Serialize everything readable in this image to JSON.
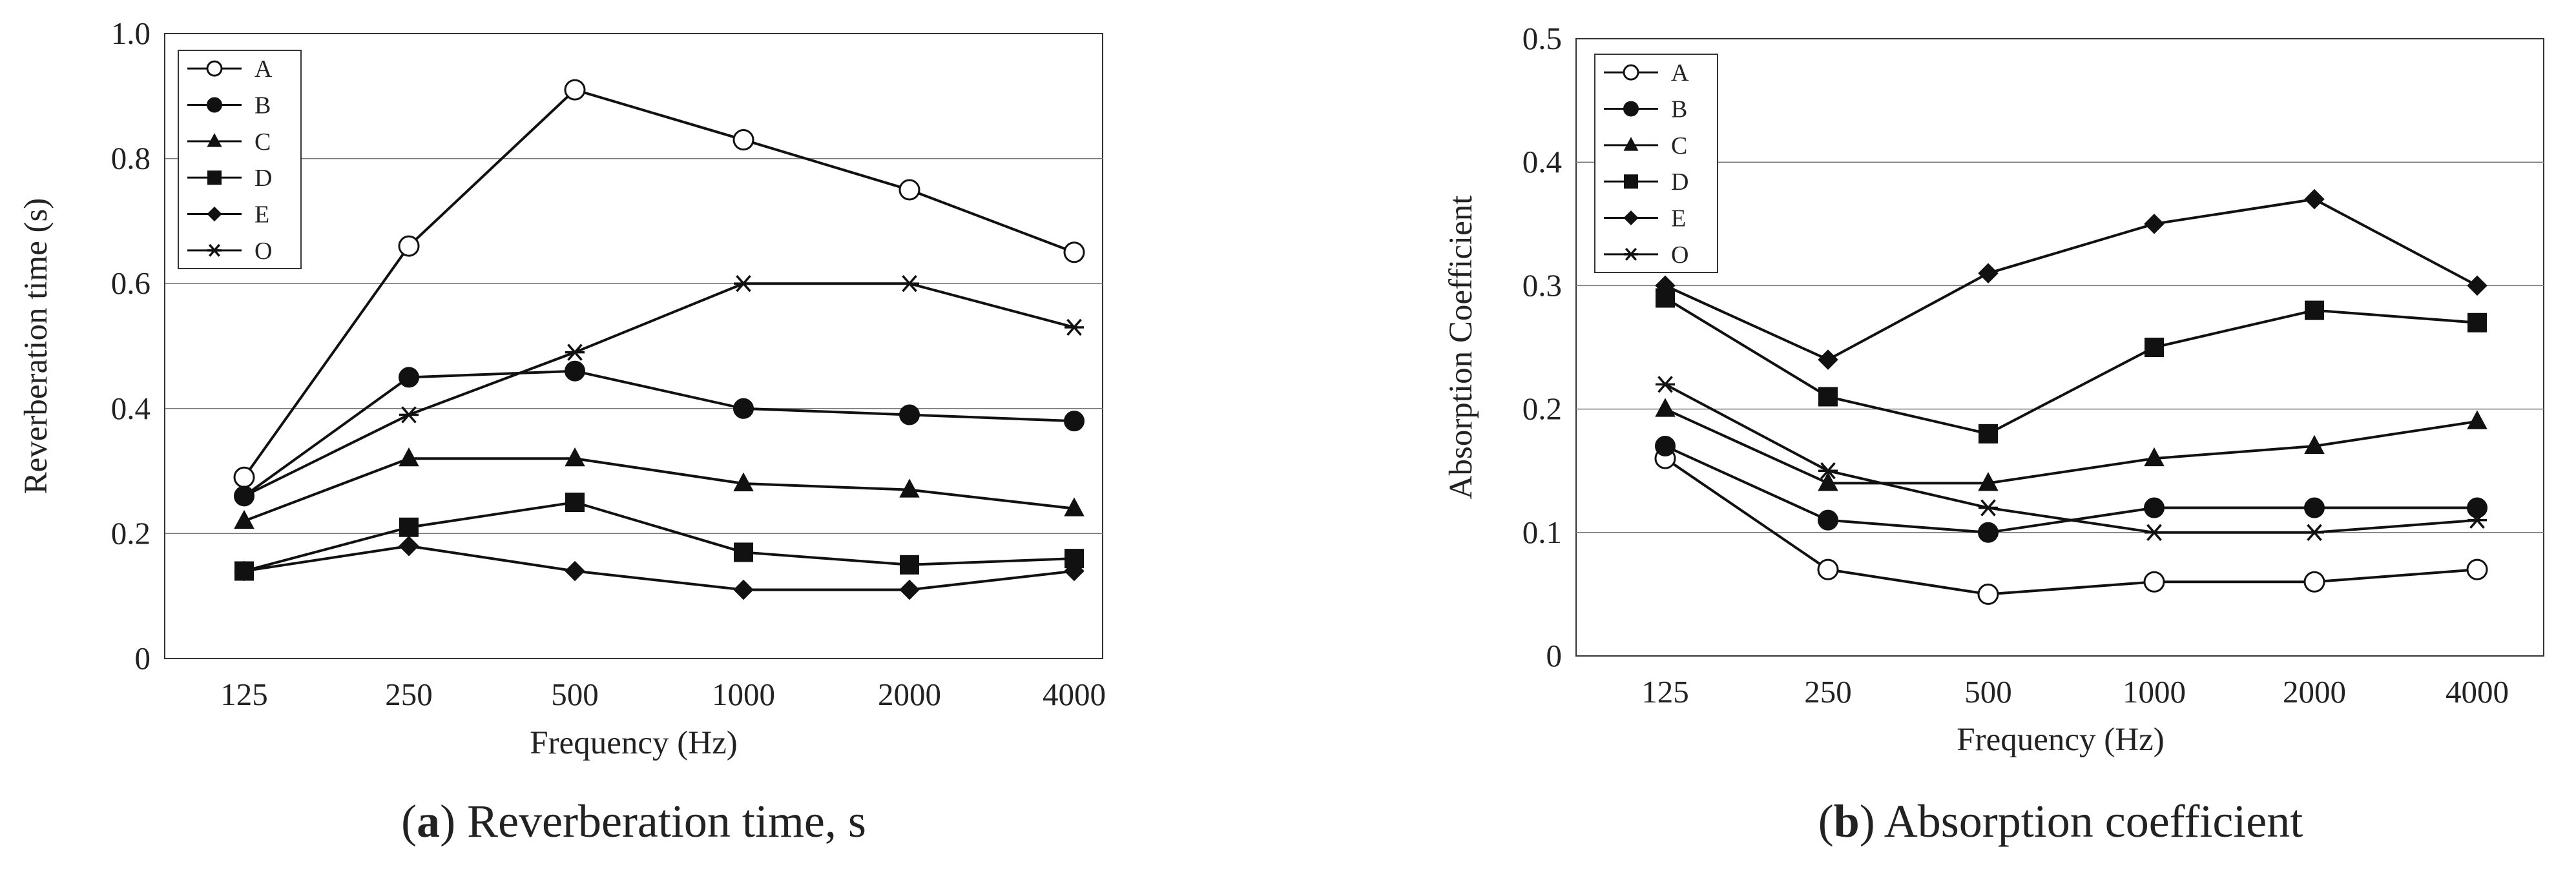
{
  "chart_data": [
    {
      "type": "line",
      "panel": "a",
      "caption_letter": "a",
      "caption_text": "Reverberation time, s",
      "title": "",
      "xlabel": "Frequency  (Hz)",
      "ylabel": "Reverberation time  (s)",
      "categories": [
        "125",
        "250",
        "500",
        "1000",
        "2000",
        "4000"
      ],
      "ylim": [
        0,
        1.0
      ],
      "yticks": [
        0,
        0.2,
        0.4,
        0.6,
        0.8,
        1.0
      ],
      "ytick_labels": [
        "0",
        "0.2",
        "0.4",
        "0.6",
        "0.8",
        "1.0"
      ],
      "grid": "horizontal",
      "legend_position": "top-left",
      "series": [
        {
          "name": "A",
          "marker": "circle-open",
          "values": [
            0.29,
            0.66,
            0.91,
            0.83,
            0.75,
            0.65
          ]
        },
        {
          "name": "B",
          "marker": "circle-filled",
          "values": [
            0.26,
            0.45,
            0.46,
            0.4,
            0.39,
            0.38
          ]
        },
        {
          "name": "C",
          "marker": "triangle",
          "values": [
            0.22,
            0.32,
            0.32,
            0.28,
            0.27,
            0.24
          ]
        },
        {
          "name": "D",
          "marker": "square",
          "values": [
            0.14,
            0.21,
            0.25,
            0.17,
            0.15,
            0.16
          ]
        },
        {
          "name": "E",
          "marker": "diamond",
          "values": [
            0.14,
            0.18,
            0.14,
            0.11,
            0.11,
            0.14
          ]
        },
        {
          "name": "O",
          "marker": "asterisk",
          "values": [
            0.26,
            0.39,
            0.49,
            0.6,
            0.6,
            0.53
          ]
        }
      ]
    },
    {
      "type": "line",
      "panel": "b",
      "caption_letter": "b",
      "caption_text": "Absorption coefficient",
      "title": "",
      "xlabel": "Frequency  (Hz)",
      "ylabel": "Absorption Coefficient",
      "categories": [
        "125",
        "250",
        "500",
        "1000",
        "2000",
        "4000"
      ],
      "ylim": [
        0,
        0.5
      ],
      "yticks": [
        0,
        0.1,
        0.2,
        0.3,
        0.4,
        0.5
      ],
      "ytick_labels": [
        "0",
        "0.1",
        "0.2",
        "0.3",
        "0.4",
        "0.5"
      ],
      "grid": "horizontal",
      "legend_position": "top-left",
      "series": [
        {
          "name": "A",
          "marker": "circle-open",
          "values": [
            0.16,
            0.07,
            0.05,
            0.06,
            0.06,
            0.07
          ]
        },
        {
          "name": "B",
          "marker": "circle-filled",
          "values": [
            0.17,
            0.11,
            0.1,
            0.12,
            0.12,
            0.12
          ]
        },
        {
          "name": "C",
          "marker": "triangle",
          "values": [
            0.2,
            0.14,
            0.14,
            0.16,
            0.17,
            0.19
          ]
        },
        {
          "name": "D",
          "marker": "square",
          "values": [
            0.29,
            0.21,
            0.18,
            0.25,
            0.28,
            0.27
          ]
        },
        {
          "name": "E",
          "marker": "diamond",
          "values": [
            0.3,
            0.24,
            0.31,
            0.35,
            0.37,
            0.3
          ]
        },
        {
          "name": "O",
          "marker": "asterisk",
          "values": [
            0.22,
            0.15,
            0.12,
            0.1,
            0.1,
            0.11
          ]
        }
      ]
    }
  ]
}
